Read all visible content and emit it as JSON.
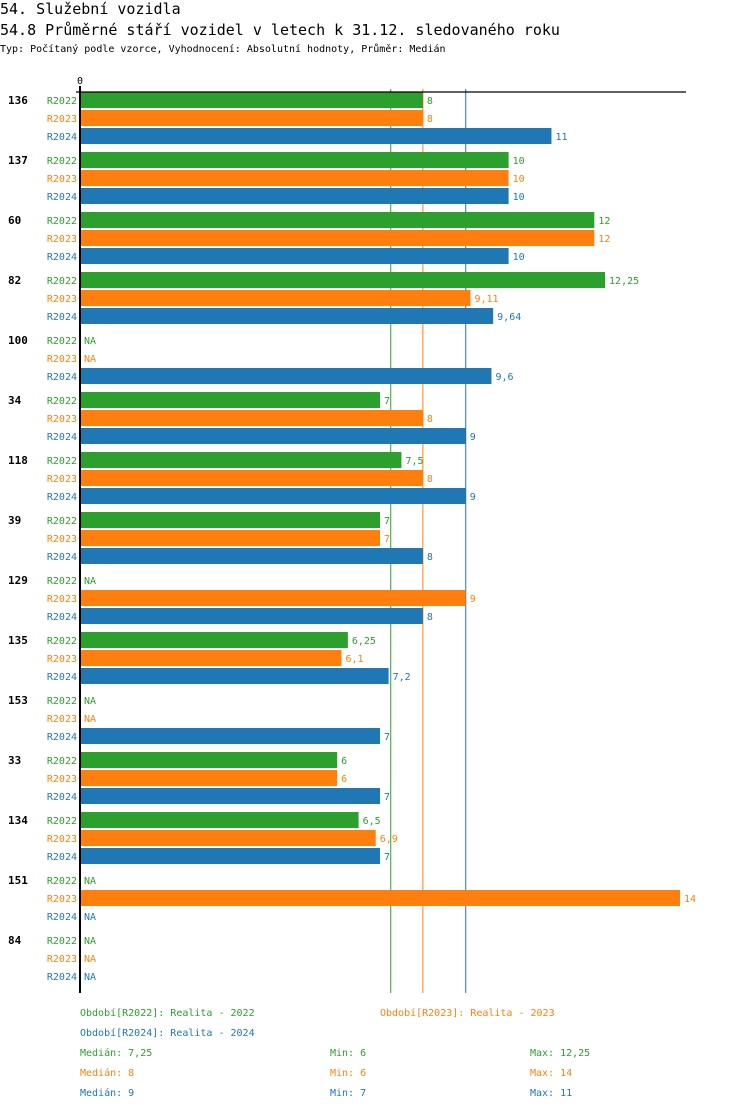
{
  "header": {
    "title": "54. Služební vozidla",
    "subtitle": "54.8 Průměrné stáří vozidel v letech k 31.12. sledovaného roku",
    "info": "Typ: Počítaný podle vzorce, Vyhodnocení: Absolutní hodnoty, Průměr: Medián"
  },
  "colors": {
    "R2022": "#2ca02c",
    "R2023": "#ff7f0e",
    "R2024": "#1f77b4",
    "axis": "#000000"
  },
  "chart_data": {
    "type": "bar",
    "orientation": "horizontal",
    "title": "54.8 Průměrné stáří vozidel v letech k 31.12. sledovaného roku",
    "xlabel": "",
    "ylabel": "",
    "x_tick_labels": [
      "0"
    ],
    "xlim": [
      0,
      14
    ],
    "na_label": "NA",
    "categories": [
      "136",
      "137",
      "60",
      "82",
      "100",
      "34",
      "118",
      "39",
      "129",
      "135",
      "153",
      "33",
      "134",
      "151",
      "84"
    ],
    "series": [
      {
        "name": "R2022",
        "values": [
          8,
          10,
          12,
          12.25,
          null,
          7,
          7.5,
          7,
          null,
          6.25,
          null,
          6,
          6.5,
          null,
          null
        ],
        "labels": [
          "8",
          "10",
          "12",
          "12,25",
          "NA",
          "7",
          "7,5",
          "7",
          "NA",
          "6,25",
          "NA",
          "6",
          "6,5",
          "NA",
          "NA"
        ]
      },
      {
        "name": "R2023",
        "values": [
          8,
          10,
          12,
          9.11,
          null,
          8,
          8,
          7,
          9,
          6.1,
          null,
          6,
          6.9,
          14,
          null
        ],
        "labels": [
          "8",
          "10",
          "12",
          "9,11",
          "NA",
          "8",
          "8",
          "7",
          "9",
          "6,1",
          "NA",
          "6",
          "6,9",
          "14",
          "NA"
        ]
      },
      {
        "name": "R2024",
        "values": [
          11,
          10,
          10,
          9.64,
          9.6,
          9,
          9,
          8,
          8,
          7.2,
          7,
          7,
          7,
          null,
          null
        ],
        "labels": [
          "11",
          "10",
          "10",
          "9,64",
          "9,6",
          "9",
          "9",
          "8",
          "8",
          "7,2",
          "7",
          "7",
          "7",
          "NA",
          "NA"
        ]
      }
    ],
    "reference_lines": [
      {
        "series": "R2022",
        "type": "median",
        "value": 7.25
      },
      {
        "series": "R2023",
        "type": "median",
        "value": 8
      },
      {
        "series": "R2024",
        "type": "median",
        "value": 9
      }
    ],
    "legend": {
      "position": "bottom",
      "periods": [
        {
          "series": "R2022",
          "text": "Období[R2022]: Realita - 2022"
        },
        {
          "series": "R2023",
          "text": "Období[R2023]: Realita - 2023"
        },
        {
          "series": "R2024",
          "text": "Období[R2024]: Realita - 2024"
        }
      ],
      "stats": [
        {
          "series": "R2022",
          "median": "Medián: 7,25",
          "min": "Min: 6",
          "max": "Max: 12,25"
        },
        {
          "series": "R2023",
          "median": "Medián: 8",
          "min": "Min: 6",
          "max": "Max: 14"
        },
        {
          "series": "R2024",
          "median": "Medián: 9",
          "min": "Min: 7",
          "max": "Max: 11"
        }
      ]
    }
  }
}
